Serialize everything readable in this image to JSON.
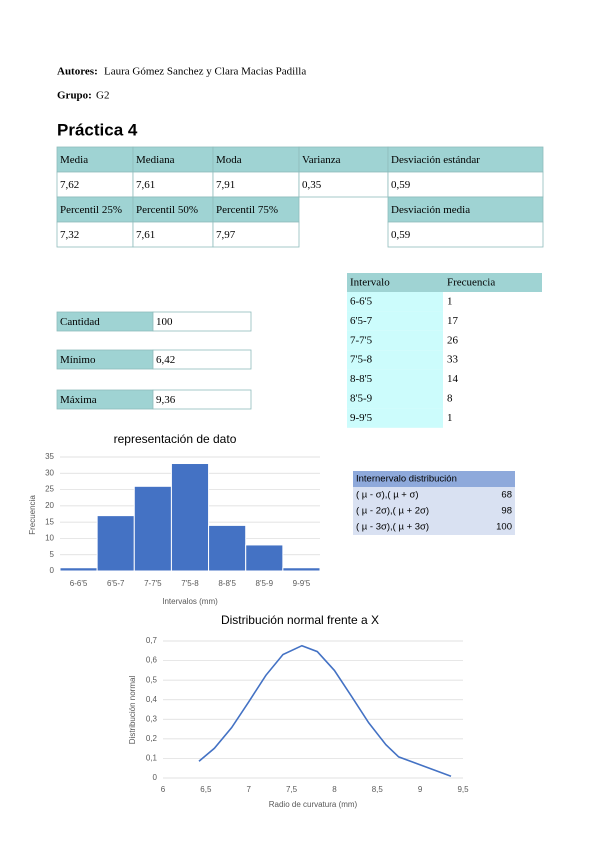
{
  "header": {
    "authors_label": "Autores:",
    "authors": "Laura Gómez Sanchez y Clara Macias Padilla",
    "group_label": "Grupo:",
    "group": "G2",
    "title": "Práctica 4"
  },
  "stats_table": {
    "rows": [
      [
        "Media",
        "Mediana",
        "Moda",
        "Varianza",
        "Desviación estándar"
      ],
      [
        "7,62",
        "7,61",
        "7,91",
        "0,35",
        "0,59"
      ],
      [
        "Percentil 25%",
        "Percentil 50%",
        "Percentil 75%",
        null,
        "Desviación media"
      ],
      [
        "7,32",
        "7,61",
        "7,97",
        null,
        "0,59"
      ]
    ]
  },
  "summary_table": {
    "rows": [
      [
        "Cantidad",
        "100"
      ],
      [
        "Mínimo",
        "6,42"
      ],
      [
        "Máxima",
        "9,36"
      ]
    ]
  },
  "frequency_table": {
    "header": [
      "Intervalo",
      "Frecuencia"
    ],
    "rows": [
      [
        "6-6'5",
        "1"
      ],
      [
        "6'5-7",
        "17"
      ],
      [
        "7-7'5",
        "26"
      ],
      [
        "7'5-8",
        "33"
      ],
      [
        "8-8'5",
        "14"
      ],
      [
        "8'5-9",
        "8"
      ],
      [
        "9-9'5",
        "1"
      ]
    ]
  },
  "interval_table": {
    "header": "Internervalo distribución",
    "rows": [
      [
        "( µ - σ),( µ + σ)",
        "68"
      ],
      [
        "( µ - 2σ),( µ + 2σ)",
        "98"
      ],
      [
        "( µ - 3σ),( µ + 3σ)",
        "100"
      ]
    ]
  },
  "chart_data": [
    {
      "type": "bar",
      "title": "representación de dato",
      "x_label": "Intervalos (mm)",
      "y_label": "Frecuencia",
      "categories": [
        "6-6'5",
        "6'5-7",
        "7-7'5",
        "7'5-8",
        "8-8'5",
        "8'5-9",
        "9-9'5"
      ],
      "values": [
        1,
        17,
        26,
        33,
        14,
        8,
        1
      ],
      "color": "#4472c4",
      "ylim": [
        0,
        35
      ],
      "yticks": [
        0,
        5,
        10,
        15,
        20,
        25,
        30,
        35
      ],
      "grid": true
    },
    {
      "type": "line",
      "title": "Distribución normal frente a X",
      "x_label": "Radio de curvatura (mm)",
      "y_label": "Distribución normal",
      "x": [
        6.42,
        6.6,
        6.8,
        7.0,
        7.2,
        7.4,
        7.62,
        7.8,
        8.0,
        8.2,
        8.4,
        8.6,
        8.75,
        9.36
      ],
      "values": [
        0.086,
        0.152,
        0.257,
        0.389,
        0.525,
        0.631,
        0.676,
        0.646,
        0.55,
        0.417,
        0.282,
        0.17,
        0.108,
        0.009
      ],
      "color": "#4472c4",
      "xlim": [
        6,
        9.5
      ],
      "xticks": [
        6,
        {
          "value": 6.5,
          "label": "6,5"
        },
        7,
        {
          "value": 7.5,
          "label": "7,5"
        },
        8,
        {
          "value": 8.5,
          "label": "8,5"
        },
        9,
        {
          "value": 9.5,
          "label": "9,5"
        }
      ],
      "ylim": [
        0,
        0.7
      ],
      "yticks": [
        0,
        {
          "value": 0.1,
          "label": "0,1"
        },
        {
          "value": 0.2,
          "label": "0,2"
        },
        {
          "value": 0.3,
          "label": "0,3"
        },
        {
          "value": 0.4,
          "label": "0,4"
        },
        {
          "value": 0.5,
          "label": "0,5"
        },
        {
          "value": 0.6,
          "label": "0,6"
        },
        {
          "value": 0.7,
          "label": "0,7"
        }
      ],
      "grid": true
    }
  ]
}
